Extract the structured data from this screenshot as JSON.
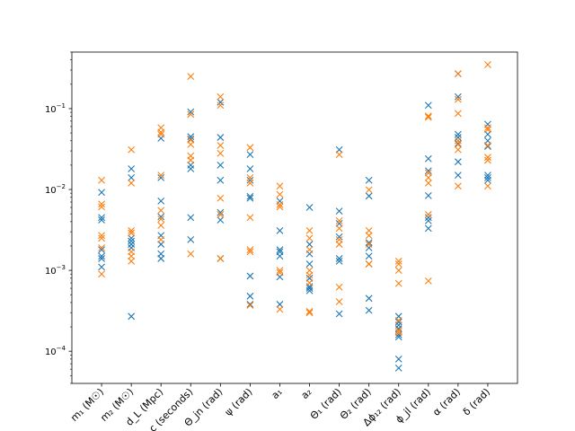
{
  "chart_data": {
    "type": "scatter",
    "title": "",
    "xlabel": "",
    "ylabel": "",
    "yscale": "log",
    "ylim": [
      4e-05,
      0.5
    ],
    "yticks": [
      {
        "value": 0.0001,
        "base": "10",
        "exp": "−4"
      },
      {
        "value": 0.001,
        "base": "10",
        "exp": "−3"
      },
      {
        "value": 0.01,
        "base": "10",
        "exp": "−2"
      },
      {
        "value": 0.1,
        "base": "10",
        "exp": "−1"
      }
    ],
    "marker": "x",
    "grid": false,
    "legend": "none",
    "categories": [
      "m₁ (M☉)",
      "m₂ (M☉)",
      "d_L (Mpc)",
      "t_c (seconds)",
      "Θ_jn (rad)",
      "ψ (rad)",
      "a₁",
      "a₂",
      "Θ₁ (rad)",
      "Θ₂ (rad)",
      "Δϕ₁₂ (rad)",
      "ϕ_jl (rad)",
      "α (rad)",
      "δ (rad)"
    ],
    "series": [
      {
        "color": "#1f77b4",
        "values": [
          [
            0.0092,
            0.0045,
            0.0042,
            0.0018,
            0.0015,
            0.0014,
            0.0011
          ],
          [
            0.018,
            0.014,
            0.0025,
            0.0023,
            0.0021,
            0.0019,
            0.00027
          ],
          [
            0.043,
            0.014,
            0.0072,
            0.0046,
            0.0027,
            0.0021,
            0.0016,
            0.0014
          ],
          [
            0.091,
            0.045,
            0.042,
            0.02,
            0.018,
            0.0045,
            0.0024
          ],
          [
            0.12,
            0.044,
            0.02,
            0.013,
            0.0052,
            0.0042,
            0.0014
          ],
          [
            0.027,
            0.018,
            0.013,
            0.0082,
            0.0078,
            0.00085,
            0.00048,
            0.00038
          ],
          [
            0.0072,
            0.0031,
            0.0018,
            0.0017,
            0.0015,
            0.00083,
            0.00038
          ],
          [
            0.006,
            0.0021,
            0.0016,
            0.0012,
            0.0008,
            0.00063,
            0.0006,
            0.00056
          ],
          [
            0.031,
            0.0054,
            0.0038,
            0.0026,
            0.0014,
            0.0013,
            0.00029
          ],
          [
            0.013,
            0.0083,
            0.0022,
            0.0019,
            0.0015,
            0.0012,
            0.00045,
            0.00032
          ],
          [
            0.00027,
            0.00023,
            0.00021,
            0.00019,
            0.00016,
            0.00015,
            8e-05,
            6.2e-05
          ],
          [
            0.11,
            0.024,
            0.017,
            0.0084,
            0.0045,
            0.0041,
            0.0033
          ],
          [
            0.27,
            0.14,
            0.048,
            0.044,
            0.037,
            0.022,
            0.015
          ],
          [
            0.064,
            0.048,
            0.04,
            0.034,
            0.015,
            0.014,
            0.013
          ]
        ]
      },
      {
        "color": "#ff7f0e",
        "values": [
          [
            0.013,
            0.0066,
            0.0061,
            0.0027,
            0.0025,
            0.0019,
            0.0009
          ],
          [
            0.031,
            0.012,
            0.0031,
            0.0029,
            0.0017,
            0.0015,
            0.0013
          ],
          [
            0.058,
            0.051,
            0.048,
            0.015,
            0.0055,
            0.0043,
            0.0036,
            0.0024
          ],
          [
            0.25,
            0.085,
            0.041,
            0.036,
            0.026,
            0.023,
            0.0016
          ],
          [
            0.14,
            0.11,
            0.035,
            0.028,
            0.0078,
            0.0049,
            0.0014
          ],
          [
            0.033,
            0.014,
            0.012,
            0.0045,
            0.0018,
            0.0017,
            0.00037
          ],
          [
            0.011,
            0.0087,
            0.0065,
            0.0061,
            0.001,
            0.00094,
            0.00033
          ],
          [
            0.0031,
            0.0025,
            0.0018,
            0.001,
            0.00087,
            0.0007,
            0.00031,
            0.0003
          ],
          [
            0.027,
            0.0041,
            0.0033,
            0.0024,
            0.0021,
            0.00062,
            0.00041
          ],
          [
            0.0099,
            0.0031,
            0.0027,
            0.0021,
            0.0012,
            0.0012
          ],
          [
            0.0013,
            0.0012,
            0.001,
            0.00069,
            0.00024,
            0.00018,
            0.00017
          ],
          [
            0.081,
            0.078,
            0.016,
            0.014,
            0.012,
            0.0049,
            0.00074
          ],
          [
            0.27,
            0.13,
            0.087,
            0.04,
            0.036,
            0.031,
            0.011
          ],
          [
            0.35,
            0.058,
            0.055,
            0.035,
            0.025,
            0.023,
            0.011
          ]
        ]
      }
    ]
  }
}
